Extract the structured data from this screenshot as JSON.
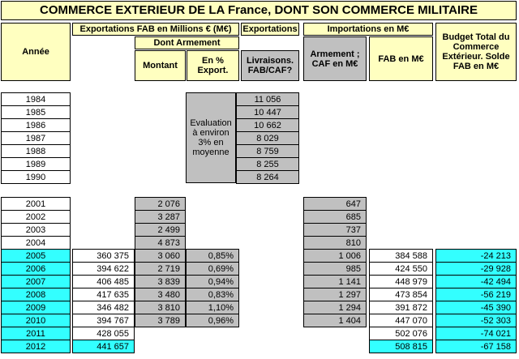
{
  "title": "COMMERCE EXTERIEUR DE LA France, DONT SON COMMERCE MILITAIRE",
  "headers": {
    "annee": "Année",
    "exportations_fab": "Exportations FAB en Millions € (M€)",
    "dont_armement": "Dont Armement",
    "montant": "Montant",
    "pct_export": "En % Export.",
    "exportations": "Exportations",
    "livraisons": "Livraisons. FAB/CAF?",
    "importations": "Importations en M€",
    "armement_caf": "Armement ; CAF en M€",
    "fab_meur": "FAB en M€",
    "budget_total": "Budget Total du Commerce Extérieur. Solde FAB en M€"
  },
  "evaluation_note": "Evaluation à environ 3% en moyenne",
  "block1": [
    {
      "year": "1984",
      "livraisons": "11 056"
    },
    {
      "year": "1985",
      "livraisons": "10 447"
    },
    {
      "year": "1986",
      "livraisons": "10 662"
    },
    {
      "year": "1987",
      "livraisons": "8 029"
    },
    {
      "year": "1988",
      "livraisons": "8 759"
    },
    {
      "year": "1989",
      "livraisons": "8 255"
    },
    {
      "year": "1990",
      "livraisons": "8 264"
    }
  ],
  "block2": [
    {
      "year": "2001",
      "exports": "",
      "montant": "2 076",
      "pct": "",
      "arm_import": "647",
      "fab_import": "",
      "solde": ""
    },
    {
      "year": "2002",
      "exports": "",
      "montant": "3 287",
      "pct": "",
      "arm_import": "685",
      "fab_import": "",
      "solde": ""
    },
    {
      "year": "2003",
      "exports": "",
      "montant": "2 499",
      "pct": "",
      "arm_import": "737",
      "fab_import": "",
      "solde": ""
    },
    {
      "year": "2004",
      "exports": "",
      "montant": "4 873",
      "pct": "",
      "arm_import": "810",
      "fab_import": "",
      "solde": ""
    },
    {
      "year": "2005",
      "exports": "360 375",
      "montant": "3 060",
      "pct": "0,85%",
      "arm_import": "1 006",
      "fab_import": "384 588",
      "solde": "-24 213"
    },
    {
      "year": "2006",
      "exports": "394 622",
      "montant": "2 719",
      "pct": "0,69%",
      "arm_import": "985",
      "fab_import": "424 550",
      "solde": "-29 928"
    },
    {
      "year": "2007",
      "exports": "406 485",
      "montant": "3 839",
      "pct": "0,94%",
      "arm_import": "1 141",
      "fab_import": "448 979",
      "solde": "-42 494"
    },
    {
      "year": "2008",
      "exports": "417 635",
      "montant": "3 480",
      "pct": "0,83%",
      "arm_import": "1 297",
      "fab_import": "473 854",
      "solde": "-56 219"
    },
    {
      "year": "2009",
      "exports": "346 482",
      "montant": "3 810",
      "pct": "1,10%",
      "arm_import": "1 294",
      "fab_import": "391 872",
      "solde": "-45 390"
    },
    {
      "year": "2010",
      "exports": "394 767",
      "montant": "3 789",
      "pct": "0,96%",
      "arm_import": "1 404",
      "fab_import": "447 070",
      "solde": "-52 303"
    },
    {
      "year": "2011",
      "exports": "428 055",
      "montant": "",
      "pct": "",
      "arm_import": "",
      "fab_import": "502 076",
      "solde": "-74 021"
    },
    {
      "year": "2012",
      "exports": "441 657",
      "montant": "",
      "pct": "",
      "arm_import": "",
      "fab_import": "508 815",
      "solde": "-67 158"
    }
  ],
  "colors": {
    "header_yellow": "#ffffc0",
    "grey": "#c0c0c0",
    "cyan": "#33ffff"
  }
}
